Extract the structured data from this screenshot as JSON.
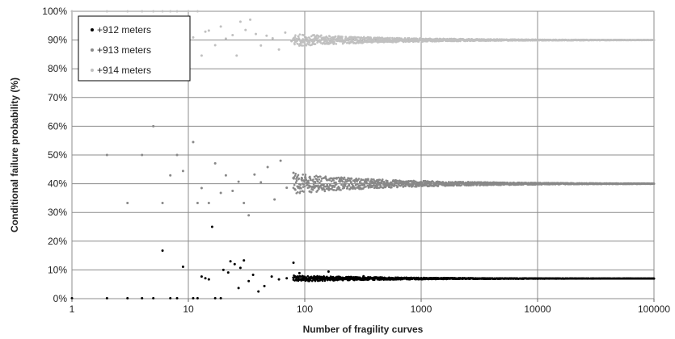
{
  "chart_data": {
    "type": "scatter",
    "title": "",
    "xlabel": "Number of fragility curves",
    "ylabel": "Conditional failure probability (%)",
    "x_scale": "log",
    "xlim": [
      1,
      100000
    ],
    "ylim": [
      0,
      100
    ],
    "x_ticks": [
      1,
      10,
      100,
      1000,
      10000,
      100000
    ],
    "x_tick_labels": [
      "1",
      "10",
      "100",
      "1000",
      "10000",
      "100000"
    ],
    "y_ticks": [
      0,
      10,
      20,
      30,
      40,
      50,
      60,
      70,
      80,
      90,
      100
    ],
    "y_tick_labels": [
      "0%",
      "10%",
      "20%",
      "30%",
      "40%",
      "50%",
      "60%",
      "70%",
      "80%",
      "90%",
      "100%"
    ],
    "grid": "major gridlines on both axes",
    "legend_position": "top-left",
    "series": [
      {
        "name": "+912 meters",
        "color": "#000000",
        "converges_to": 7,
        "points": [
          [
            1,
            0
          ],
          [
            2,
            0
          ],
          [
            3,
            0
          ],
          [
            4,
            0
          ],
          [
            5,
            0
          ],
          [
            6,
            16.7
          ],
          [
            7,
            0
          ],
          [
            8,
            0
          ],
          [
            9,
            11.1
          ],
          [
            11,
            0
          ],
          [
            12,
            0
          ],
          [
            13,
            7.7
          ],
          [
            14,
            7.1
          ],
          [
            15,
            6.7
          ],
          [
            16,
            25
          ],
          [
            17,
            0
          ],
          [
            19,
            0
          ],
          [
            20,
            10
          ],
          [
            22,
            9.1
          ],
          [
            23,
            13
          ],
          [
            25,
            12
          ],
          [
            27,
            3.7
          ],
          [
            28,
            10.7
          ],
          [
            30,
            13.3
          ],
          [
            33,
            6.1
          ],
          [
            36,
            8.3
          ],
          [
            40,
            2.5
          ],
          [
            45,
            4.4
          ],
          [
            52,
            7.7
          ],
          [
            60,
            6.7
          ],
          [
            70,
            7.1
          ],
          [
            80,
            12.5
          ],
          [
            90,
            8.9
          ],
          [
            110,
            7.3
          ],
          [
            130,
            6.2
          ],
          [
            160,
            9.4
          ],
          [
            200,
            7.5
          ],
          [
            260,
            6.9
          ],
          [
            320,
            7.8
          ],
          [
            400,
            7.3
          ],
          [
            500,
            6.8
          ],
          [
            650,
            7.2
          ],
          [
            850,
            7.1
          ],
          [
            1200,
            7.05
          ],
          [
            2000,
            7.0
          ],
          [
            4000,
            7.0
          ],
          [
            10000,
            7.0
          ],
          [
            30000,
            7.0
          ],
          [
            100000,
            7.0
          ]
        ]
      },
      {
        "name": "+913 meters",
        "color": "#888888",
        "converges_to": 40,
        "points": [
          [
            2,
            50
          ],
          [
            3,
            33.3
          ],
          [
            4,
            50
          ],
          [
            5,
            60
          ],
          [
            6,
            33.3
          ],
          [
            7,
            42.9
          ],
          [
            8,
            50
          ],
          [
            9,
            44.4
          ],
          [
            11,
            54.5
          ],
          [
            12,
            33.3
          ],
          [
            13,
            38.5
          ],
          [
            15,
            33.3
          ],
          [
            17,
            47.1
          ],
          [
            19,
            36.8
          ],
          [
            21,
            42.9
          ],
          [
            24,
            37.5
          ],
          [
            27,
            40.7
          ],
          [
            30,
            33.3
          ],
          [
            33,
            29
          ],
          [
            37,
            43.2
          ],
          [
            42,
            40.5
          ],
          [
            48,
            45.8
          ],
          [
            55,
            34.5
          ],
          [
            62,
            48
          ],
          [
            70,
            38.6
          ],
          [
            80,
            43.8
          ],
          [
            95,
            41.1
          ],
          [
            110,
            37.3
          ],
          [
            130,
            42.3
          ],
          [
            160,
            38.8
          ],
          [
            200,
            41.5
          ],
          [
            260,
            39.2
          ],
          [
            330,
            40.6
          ],
          [
            420,
            39.5
          ],
          [
            550,
            40.4
          ],
          [
            700,
            39.8
          ],
          [
            1000,
            40.1
          ],
          [
            1600,
            39.9
          ],
          [
            3000,
            40.0
          ],
          [
            8000,
            40.0
          ],
          [
            25000,
            40.0
          ],
          [
            100000,
            40.0
          ]
        ]
      },
      {
        "name": "+914 meters",
        "color": "#c0c0c0",
        "converges_to": 90,
        "points": [
          [
            1,
            100
          ],
          [
            2,
            100
          ],
          [
            3,
            100
          ],
          [
            4,
            100
          ],
          [
            5,
            100
          ],
          [
            6,
            100
          ],
          [
            7,
            100
          ],
          [
            8,
            100
          ],
          [
            10,
            100
          ],
          [
            11,
            90.9
          ],
          [
            12,
            100
          ],
          [
            13,
            84.6
          ],
          [
            14,
            92.9
          ],
          [
            15,
            93.3
          ],
          [
            17,
            88.2
          ],
          [
            19,
            94.7
          ],
          [
            21,
            90.5
          ],
          [
            24,
            91.7
          ],
          [
            26,
            84.6
          ],
          [
            28,
            96.4
          ],
          [
            31,
            93.5
          ],
          [
            34,
            97.1
          ],
          [
            38,
            92.1
          ],
          [
            42,
            88.1
          ],
          [
            47,
            91.5
          ],
          [
            53,
            90.6
          ],
          [
            60,
            86.7
          ],
          [
            68,
            92.6
          ],
          [
            77,
            89.6
          ],
          [
            88,
            91.3
          ],
          [
            100,
            90
          ],
          [
            120,
            91.7
          ],
          [
            145,
            89
          ],
          [
            175,
            90.9
          ],
          [
            210,
            89.5
          ],
          [
            260,
            90.4
          ],
          [
            330,
            89.7
          ],
          [
            420,
            90.2
          ],
          [
            550,
            89.8
          ],
          [
            750,
            90.1
          ],
          [
            1100,
            89.9
          ],
          [
            1800,
            90.0
          ],
          [
            4000,
            90.0
          ],
          [
            12000,
            90.0
          ],
          [
            40000,
            90.0
          ],
          [
            100000,
            90.0
          ]
        ]
      }
    ]
  }
}
